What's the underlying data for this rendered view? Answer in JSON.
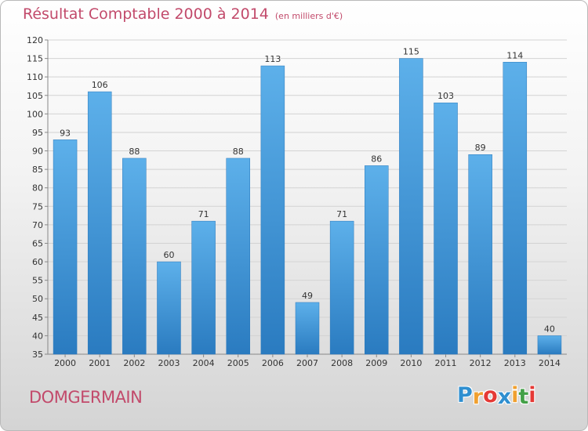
{
  "chart_data": {
    "type": "bar",
    "title": "Résultat Comptable 2000 à 2014",
    "subtitle": "(en milliers d'€)",
    "categories": [
      "2000",
      "2001",
      "2002",
      "2003",
      "2004",
      "2005",
      "2006",
      "2007",
      "2008",
      "2009",
      "2010",
      "2011",
      "2012",
      "2013",
      "2014"
    ],
    "values": [
      93,
      106,
      88,
      60,
      71,
      88,
      113,
      49,
      71,
      86,
      115,
      103,
      89,
      114,
      40
    ],
    "ylim": [
      35,
      120
    ],
    "yticks": [
      35,
      40,
      45,
      50,
      55,
      60,
      65,
      70,
      75,
      80,
      85,
      90,
      95,
      100,
      105,
      110,
      115,
      120
    ],
    "grid": true,
    "bar_color": "#4a9fe0"
  },
  "footer": {
    "commune": "DOMGERMAIN",
    "logo": {
      "letters": [
        "P",
        "r",
        "o",
        "x",
        "i",
        "t",
        "i"
      ],
      "colors": [
        "#2f8fd0",
        "#f0a030",
        "#e53935",
        "#2f8fd0",
        "#f0a030",
        "#43a047",
        "#e53935"
      ]
    }
  }
}
